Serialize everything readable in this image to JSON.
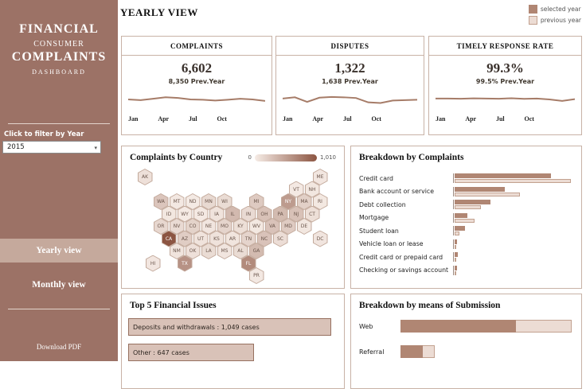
{
  "colors": {
    "sidebar": "#9c7266",
    "selected": "#b08673",
    "previous": "#ecdcd4",
    "previous_border": "#c2a18f",
    "line": "#a67c68",
    "panel_border": "#c8b2a6",
    "map_low": "#f6ece6",
    "map_high": "#8c5542",
    "issue_fill": "#d9c2b8",
    "issue_border": "#96705f"
  },
  "sidebar": {
    "title_line1": "FINANCIAL",
    "title_line2": "CONSUMER",
    "title_line3": "COMPLAINTS",
    "title_line4": "DASHBOARD",
    "filter_label": "Click to filter by Year",
    "year_value": "2015",
    "yearly_btn": "Yearly view",
    "monthly_btn": "Monthly view",
    "download": "Download PDF"
  },
  "header": {
    "title": "YEARLY VIEW",
    "legend": [
      {
        "label": "selected year",
        "type": "selected"
      },
      {
        "label": "previous year",
        "type": "previous"
      }
    ]
  },
  "months": [
    "Jan",
    "Apr",
    "Jul",
    "Oct"
  ],
  "kpis": [
    {
      "title": "COMPLAINTS",
      "value": "6,602",
      "prev": "8,350 Prev.Year",
      "spark": [
        50,
        46,
        54,
        62,
        58,
        50,
        48,
        44,
        48,
        54,
        50,
        42
      ]
    },
    {
      "title": "DISPUTES",
      "value": "1,322",
      "prev": "1,638 Prev.Year",
      "spark": [
        55,
        62,
        36,
        60,
        64,
        62,
        58,
        34,
        30,
        44,
        46,
        48
      ]
    },
    {
      "title": "TIMELY RESPONSE RATE",
      "value": "99.3%",
      "prev": "99.5% Prev.Year",
      "spark": [
        55,
        55,
        54,
        56,
        55,
        54,
        57,
        53,
        55,
        50,
        42,
        52
      ]
    }
  ],
  "map": {
    "title": "Complaints by Country",
    "legend_min": "0",
    "legend_max": "1,010",
    "max_value": 1010,
    "states": [
      {
        "abbr": "AK",
        "col": 0,
        "row": 0,
        "value": 80
      },
      {
        "abbr": "ME",
        "col": 11,
        "row": 0,
        "value": 40
      },
      {
        "abbr": "VT",
        "col": 9,
        "row": 1,
        "value": 20
      },
      {
        "abbr": "NH",
        "col": 10,
        "row": 1,
        "value": 35
      },
      {
        "abbr": "WA",
        "col": 1,
        "row": 2,
        "value": 260
      },
      {
        "abbr": "MT",
        "col": 2,
        "row": 2,
        "value": 25
      },
      {
        "abbr": "ND",
        "col": 3,
        "row": 2,
        "value": 15
      },
      {
        "abbr": "MN",
        "col": 4,
        "row": 2,
        "value": 130
      },
      {
        "abbr": "WI",
        "col": 5,
        "row": 2,
        "value": 110
      },
      {
        "abbr": "MI",
        "col": 7,
        "row": 2,
        "value": 230
      },
      {
        "abbr": "NY",
        "col": 9,
        "row": 2,
        "value": 540
      },
      {
        "abbr": "MA",
        "col": 10,
        "row": 2,
        "value": 190
      },
      {
        "abbr": "RI",
        "col": 11,
        "row": 2,
        "value": 30
      },
      {
        "abbr": "ID",
        "col": 1,
        "row": 3,
        "value": 35
      },
      {
        "abbr": "WY",
        "col": 2,
        "row": 3,
        "value": 12
      },
      {
        "abbr": "SD",
        "col": 3,
        "row": 3,
        "value": 18
      },
      {
        "abbr": "IA",
        "col": 4,
        "row": 3,
        "value": 60
      },
      {
        "abbr": "IL",
        "col": 5,
        "row": 3,
        "value": 340
      },
      {
        "abbr": "IN",
        "col": 6,
        "row": 3,
        "value": 120
      },
      {
        "abbr": "OH",
        "col": 7,
        "row": 3,
        "value": 290
      },
      {
        "abbr": "PA",
        "col": 8,
        "row": 3,
        "value": 330
      },
      {
        "abbr": "NJ",
        "col": 9,
        "row": 3,
        "value": 290
      },
      {
        "abbr": "CT",
        "col": 10,
        "row": 3,
        "value": 90
      },
      {
        "abbr": "OR",
        "col": 1,
        "row": 4,
        "value": 140
      },
      {
        "abbr": "NV",
        "col": 2,
        "row": 4,
        "value": 120
      },
      {
        "abbr": "CO",
        "col": 3,
        "row": 4,
        "value": 170
      },
      {
        "abbr": "NE",
        "col": 4,
        "row": 4,
        "value": 45
      },
      {
        "abbr": "MO",
        "col": 5,
        "row": 4,
        "value": 160
      },
      {
        "abbr": "KY",
        "col": 6,
        "row": 4,
        "value": 90
      },
      {
        "abbr": "WV",
        "col": 7,
        "row": 4,
        "value": 30
      },
      {
        "abbr": "VA",
        "col": 8,
        "row": 4,
        "value": 280
      },
      {
        "abbr": "MD",
        "col": 9,
        "row": 4,
        "value": 220
      },
      {
        "abbr": "DE",
        "col": 10,
        "row": 4,
        "value": 35
      },
      {
        "abbr": "CA",
        "col": 1,
        "row": 5,
        "value": 1010
      },
      {
        "abbr": "AZ",
        "col": 2,
        "row": 5,
        "value": 210
      },
      {
        "abbr": "UT",
        "col": 3,
        "row": 5,
        "value": 60
      },
      {
        "abbr": "KS",
        "col": 4,
        "row": 5,
        "value": 70
      },
      {
        "abbr": "AR",
        "col": 5,
        "row": 5,
        "value": 50
      },
      {
        "abbr": "TN",
        "col": 6,
        "row": 5,
        "value": 160
      },
      {
        "abbr": "NC",
        "col": 7,
        "row": 5,
        "value": 280
      },
      {
        "abbr": "SC",
        "col": 8,
        "row": 5,
        "value": 100
      },
      {
        "abbr": "DC",
        "col": 10.5,
        "row": 5,
        "value": 45
      },
      {
        "abbr": "NM",
        "col": 2,
        "row": 6,
        "value": 55
      },
      {
        "abbr": "OK",
        "col": 3,
        "row": 6,
        "value": 80
      },
      {
        "abbr": "LA",
        "col": 4,
        "row": 6,
        "value": 110
      },
      {
        "abbr": "MS",
        "col": 5,
        "row": 6,
        "value": 45
      },
      {
        "abbr": "AL",
        "col": 6,
        "row": 6,
        "value": 110
      },
      {
        "abbr": "GA",
        "col": 7,
        "row": 6,
        "value": 330
      },
      {
        "abbr": "HI",
        "col": 0,
        "row": 7,
        "value": 40
      },
      {
        "abbr": "TX",
        "col": 2,
        "row": 7,
        "value": 600
      },
      {
        "abbr": "FL",
        "col": 6,
        "row": 7,
        "value": 650
      },
      {
        "abbr": "PR",
        "col": 7,
        "row": 8,
        "value": 25
      }
    ]
  },
  "complaints_breakdown": {
    "title": "Breakdown by Complaints",
    "max": 3000,
    "items": [
      {
        "label": "Credit card",
        "selected": 2430,
        "previous": 2940
      },
      {
        "label": "Bank account or service",
        "selected": 1260,
        "previous": 1650
      },
      {
        "label": "Debt collection",
        "selected": 900,
        "previous": 660
      },
      {
        "label": "Mortgage",
        "selected": 330,
        "previous": 510
      },
      {
        "label": "Student loan",
        "selected": 270,
        "previous": 120
      },
      {
        "label": "Vehicle loan or lease",
        "selected": 60,
        "previous": 40
      },
      {
        "label": "Credit card or prepaid card",
        "selected": 75,
        "previous": 35
      },
      {
        "label": "Checking or savings account",
        "selected": 60,
        "previous": 25
      }
    ]
  },
  "top_issues": {
    "title": "Top 5 Financial Issues",
    "max": 1080,
    "items": [
      {
        "label": "Deposits and withdrawals : 1,049 cases",
        "value": 1049
      },
      {
        "label": "Other : 647 cases",
        "value": 647
      }
    ]
  },
  "submission": {
    "title": "Breakdown by means of Submission",
    "max": 5000,
    "items": [
      {
        "label": "Web",
        "selected": 3350,
        "previous": 4950
      },
      {
        "label": "Referral",
        "selected": 650,
        "previous": 1000
      }
    ]
  },
  "chart_data": [
    {
      "type": "line",
      "title": "COMPLAINTS sparkline",
      "x_ticks": [
        "Jan",
        "Apr",
        "Jul",
        "Oct"
      ],
      "values": [
        50,
        46,
        54,
        62,
        58,
        50,
        48,
        44,
        48,
        54,
        50,
        42
      ]
    },
    {
      "type": "line",
      "title": "DISPUTES sparkline",
      "x_ticks": [
        "Jan",
        "Apr",
        "Jul",
        "Oct"
      ],
      "values": [
        55,
        62,
        36,
        60,
        64,
        62,
        58,
        34,
        30,
        44,
        46,
        48
      ]
    },
    {
      "type": "line",
      "title": "TIMELY RESPONSE RATE sparkline",
      "x_ticks": [
        "Jan",
        "Apr",
        "Jul",
        "Oct"
      ],
      "values": [
        55,
        55,
        54,
        56,
        55,
        54,
        57,
        53,
        55,
        50,
        42,
        52
      ]
    },
    {
      "type": "bar",
      "title": "Breakdown by Complaints",
      "categories": [
        "Credit card",
        "Bank account or service",
        "Debt collection",
        "Mortgage",
        "Student loan",
        "Vehicle loan or lease",
        "Credit card or prepaid card",
        "Checking or savings account"
      ],
      "series": [
        {
          "name": "selected year",
          "values": [
            2430,
            1260,
            900,
            330,
            270,
            60,
            75,
            60
          ]
        },
        {
          "name": "previous year",
          "values": [
            2940,
            1650,
            660,
            510,
            120,
            40,
            35,
            25
          ]
        }
      ],
      "xlim": [
        0,
        3000
      ]
    },
    {
      "type": "bar",
      "title": "Top 5 Financial Issues",
      "categories": [
        "Deposits and withdrawals",
        "Other"
      ],
      "values": [
        1049,
        647
      ]
    },
    {
      "type": "bar",
      "title": "Breakdown by means of Submission",
      "categories": [
        "Web",
        "Referral"
      ],
      "series": [
        {
          "name": "selected year",
          "values": [
            3350,
            650
          ]
        },
        {
          "name": "previous year",
          "values": [
            4950,
            1000
          ]
        }
      ]
    },
    {
      "type": "heatmap",
      "title": "Complaints by Country",
      "scale_min": 0,
      "scale_max": 1010
    }
  ]
}
